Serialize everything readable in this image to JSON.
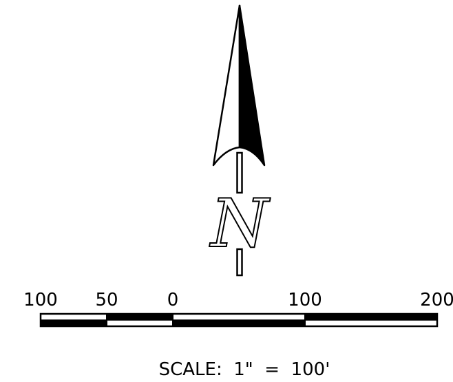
{
  "north_arrow": {
    "letter": "N",
    "ink_color": "#000000",
    "paper_color": "#ffffff"
  },
  "scale_bar": {
    "ticks": [
      {
        "label": "100",
        "value": -100
      },
      {
        "label": "50",
        "value": -50
      },
      {
        "label": "0",
        "value": 0
      },
      {
        "label": "100",
        "value": 100
      },
      {
        "label": "200",
        "value": 200
      }
    ],
    "segments": [
      {
        "from": -100,
        "to": -50,
        "top": "white",
        "bottom": "black"
      },
      {
        "from": -50,
        "to": 0,
        "top": "black",
        "bottom": "white"
      },
      {
        "from": 0,
        "to": 100,
        "top": "white",
        "bottom": "black"
      },
      {
        "from": 100,
        "to": 200,
        "top": "black",
        "bottom": "white"
      }
    ],
    "caption": "SCALE:  1\"  =  100'"
  }
}
